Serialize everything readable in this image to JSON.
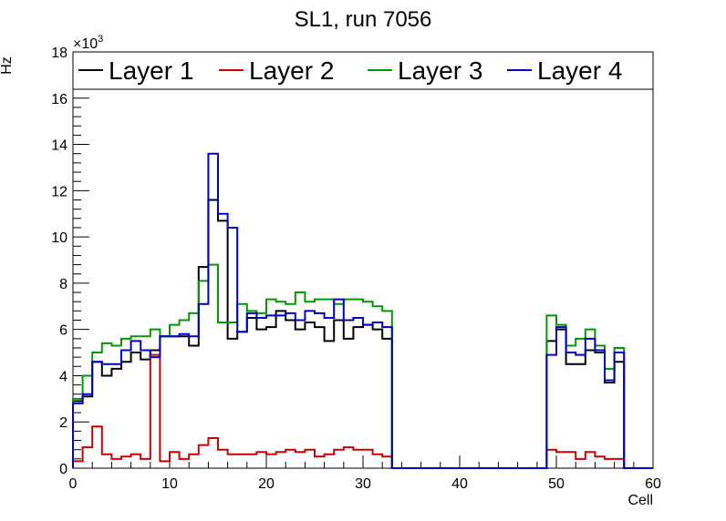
{
  "chart_data": {
    "type": "step",
    "title": "SL1, run 7056",
    "xlabel": "Cell",
    "ylabel": "Hz",
    "y_multiplier": "×10",
    "y_multiplier_exp": "3",
    "xlim": [
      0,
      60
    ],
    "ylim": [
      0,
      18
    ],
    "x_ticks": [
      0,
      10,
      20,
      30,
      40,
      50,
      60
    ],
    "y_ticks": [
      0,
      2,
      4,
      6,
      8,
      10,
      12,
      14,
      16,
      18
    ],
    "legend_position": "top",
    "series": [
      {
        "name": "Layer 1",
        "color": "#000000",
        "values": [
          2.9,
          3.1,
          4.6,
          4.0,
          4.3,
          4.6,
          5.0,
          4.7,
          5.1,
          5.7,
          5.7,
          5.7,
          5.3,
          8.7,
          11.6,
          10.7,
          5.6,
          5.9,
          6.5,
          6.0,
          6.1,
          6.8,
          6.4,
          6.0,
          6.3,
          6.1,
          5.5,
          6.4,
          5.6,
          6.1,
          6.2,
          6.0,
          5.6,
          0,
          0,
          0,
          0,
          0,
          0,
          0,
          0,
          0,
          0,
          0,
          0,
          0,
          0,
          0,
          0,
          5.5,
          6.0,
          4.5,
          4.5,
          5.1,
          5.0,
          3.7,
          4.6,
          0,
          0,
          0
        ]
      },
      {
        "name": "Layer 2",
        "color": "#cc0000",
        "values": [
          0.3,
          0.9,
          1.8,
          0.6,
          0.4,
          0.5,
          0.6,
          0.4,
          4.9,
          0.3,
          0.7,
          0.4,
          0.6,
          1.0,
          1.3,
          0.8,
          0.6,
          0.6,
          0.6,
          0.7,
          0.6,
          0.7,
          0.8,
          0.7,
          0.8,
          0.5,
          0.6,
          0.8,
          0.9,
          0.8,
          0.8,
          0.6,
          0.5,
          0,
          0,
          0,
          0,
          0,
          0,
          0,
          0,
          0,
          0,
          0,
          0,
          0,
          0,
          0,
          0,
          0.8,
          0.7,
          0.7,
          0.4,
          0.7,
          0.5,
          0.4,
          0.4,
          0,
          0,
          0
        ]
      },
      {
        "name": "Layer 3",
        "color": "#009900",
        "values": [
          3.0,
          4.0,
          5.0,
          5.4,
          5.3,
          5.6,
          5.7,
          5.7,
          6.0,
          5.7,
          6.2,
          6.4,
          6.7,
          8.1,
          8.8,
          6.3,
          6.3,
          7.1,
          6.8,
          6.7,
          7.3,
          7.2,
          7.1,
          7.6,
          7.2,
          7.3,
          7.3,
          7.1,
          7.3,
          7.3,
          7.2,
          7.0,
          6.8,
          0,
          0,
          0,
          0,
          0,
          0,
          0,
          0,
          0,
          0,
          0,
          0,
          0,
          0,
          0,
          0,
          6.6,
          6.2,
          5.3,
          5.6,
          6.0,
          5.3,
          4.3,
          5.2,
          0,
          0,
          0
        ]
      },
      {
        "name": "Layer 4",
        "color": "#0000cc",
        "values": [
          2.8,
          3.2,
          4.6,
          4.5,
          4.5,
          5.1,
          5.5,
          5.1,
          4.8,
          5.7,
          5.7,
          5.8,
          5.7,
          7.1,
          13.6,
          11.0,
          10.4,
          5.9,
          6.7,
          6.5,
          6.6,
          6.6,
          6.7,
          6.4,
          6.8,
          6.7,
          6.5,
          7.3,
          6.4,
          6.5,
          6.2,
          6.3,
          6.1,
          0,
          0,
          0,
          0,
          0,
          0,
          0,
          0,
          0,
          0,
          0,
          0,
          0,
          0,
          0,
          0,
          4.9,
          6.1,
          5.0,
          4.9,
          5.6,
          5.1,
          3.8,
          5.0,
          0,
          0,
          0
        ]
      }
    ]
  }
}
